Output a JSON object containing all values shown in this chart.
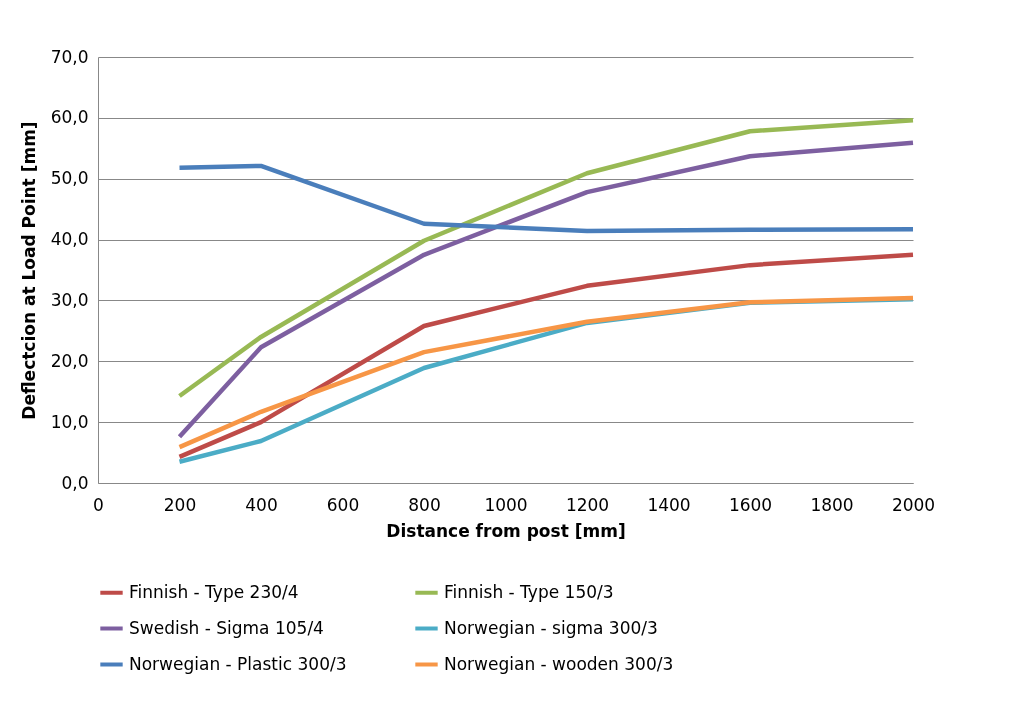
{
  "chart_data": {
    "type": "line",
    "xlabel": "Distance from post [mm]",
    "ylabel": "Deflectcion at Load Point [mm]",
    "x": [
      200,
      400,
      800,
      1200,
      1600,
      2000
    ],
    "series": [
      {
        "name": "Finnish - Type 230/4",
        "color": "#be4b48",
        "values": [
          4.3,
          10.0,
          25.8,
          32.4,
          35.8,
          37.5
        ]
      },
      {
        "name": "Finnish - Type 150/3",
        "color": "#98b954",
        "values": [
          14.3,
          24.0,
          39.8,
          50.9,
          57.8,
          59.6
        ]
      },
      {
        "name": "Swedish - Sigma 105/4",
        "color": "#7d5fa0",
        "values": [
          7.6,
          22.3,
          37.5,
          47.8,
          53.7,
          55.9
        ]
      },
      {
        "name": "Norwegian - sigma 300/3",
        "color": "#4bacc6",
        "values": [
          3.5,
          6.9,
          18.9,
          26.3,
          29.6,
          30.2
        ]
      },
      {
        "name": "Norwegian - Plastic 300/3",
        "color": "#4a7ebb",
        "values": [
          51.8,
          52.1,
          42.6,
          41.4,
          41.6,
          41.7
        ]
      },
      {
        "name": "Norwegian - wooden 300/3",
        "color": "#f79646",
        "values": [
          5.9,
          11.7,
          21.5,
          26.5,
          29.7,
          30.4
        ]
      }
    ],
    "xlim": [
      0,
      2000
    ],
    "xticks": [
      0,
      200,
      400,
      600,
      800,
      1000,
      1200,
      1400,
      1600,
      1800,
      2000
    ],
    "ylim": [
      0,
      70
    ],
    "yticks": [
      {
        "value": 0,
        "label": "0,0"
      },
      {
        "value": 10,
        "label": "10,0"
      },
      {
        "value": 20,
        "label": "20,0"
      },
      {
        "value": 30,
        "label": "30,0"
      },
      {
        "value": 40,
        "label": "40,0"
      },
      {
        "value": 50,
        "label": "50,0"
      },
      {
        "value": 60,
        "label": "60,0"
      },
      {
        "value": 70,
        "label": "70,0"
      }
    ],
    "grid": "y",
    "legend": "bottom",
    "marker": "none",
    "line_style": "solid"
  }
}
